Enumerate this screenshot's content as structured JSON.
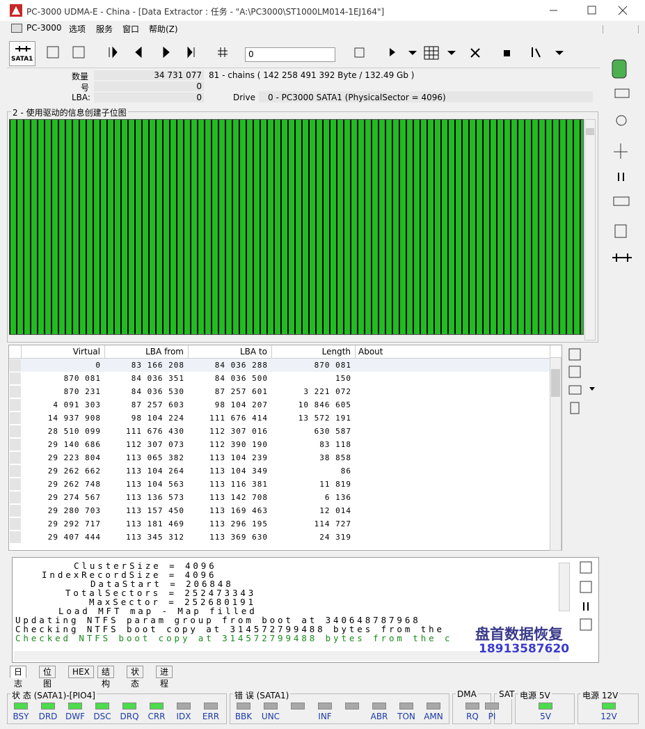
{
  "window": {
    "title": "PC-3000 UDMA-E - China - [Data Extractor : 任务 - \"A:\\PC3000\\ST1000LM014-1EJ164\"]"
  },
  "menu": [
    "PC-3000",
    "选项",
    "服务",
    "窗口",
    "帮助(Z)"
  ],
  "toolbar": {
    "port": "SATA1",
    "input": "0"
  },
  "info": {
    "count_label": "数量",
    "count": "34 731 077",
    "chains": "81 - chains  ( 142 258 491 392 Byte /  132.49 Gb )",
    "number_label": "号",
    "number": "0",
    "lba_label": "LBA:",
    "lba": "0",
    "drive_label": "Drive",
    "drive": "0 - PC3000 SATA1 (PhysicalSector = 4096)"
  },
  "map": {
    "title": "2 - 使用驱动的信息创建子位图"
  },
  "table": {
    "columns": [
      "Virtual",
      "LBA from",
      "LBA to",
      "Length",
      "About"
    ],
    "rows": [
      [
        "0",
        "83 166 208",
        "84 036 288",
        "870 081"
      ],
      [
        "870 081",
        "84 036 351",
        "84 036 500",
        "150"
      ],
      [
        "870 231",
        "84 036 530",
        "87 257 601",
        "3 221 072"
      ],
      [
        "4 091 303",
        "87 257 603",
        "98 104 207",
        "10 846 605"
      ],
      [
        "14 937 908",
        "98 104 224",
        "111 676 414",
        "13 572 191"
      ],
      [
        "28 510 099",
        "111 676 430",
        "112 307 016",
        "630 587"
      ],
      [
        "29 140 686",
        "112 307 073",
        "112 390 190",
        "83 118"
      ],
      [
        "29 223 804",
        "113 065 382",
        "113 104 239",
        "38 858"
      ],
      [
        "29 262 662",
        "113 104 264",
        "113 104 349",
        "86"
      ],
      [
        "29 262 748",
        "113 104 563",
        "113 116 381",
        "11 819"
      ],
      [
        "29 274 567",
        "113 136 573",
        "113 142 708",
        "6 136"
      ],
      [
        "29 280 703",
        "113 157 450",
        "113 169 463",
        "12 014"
      ],
      [
        "29 292 717",
        "113 181 469",
        "113 296 195",
        "114 727"
      ],
      [
        "29 407 444",
        "113 345 312",
        "113 369 630",
        "24 319"
      ]
    ]
  },
  "log": {
    "lines": [
      "ClusterSize = 4096",
      "IndexRecordSize = 4096",
      "DataStart = 206848",
      "TotalSectors = 252473343",
      "MaxSector = 252680191",
      "Load MFT map  - Map filled",
      "Updating NTFS param group from boot at 340648787968",
      "Checking NTFS boot copy at 314572799488 bytes from the",
      "Checked NTFS boot copy at 314572799488 bytes from the c"
    ]
  },
  "tabs": [
    "日志",
    "位图",
    "HEX",
    "结构",
    "状态",
    "进程"
  ],
  "status": [
    {
      "title": "状 态 (SATA1)-[PIO4]",
      "indicators": [
        {
          "label": "BSY",
          "lit": true
        },
        {
          "label": "DRD",
          "lit": true
        },
        {
          "label": "DWF",
          "lit": true
        },
        {
          "label": "DSC",
          "lit": true
        },
        {
          "label": "DRQ",
          "lit": true
        },
        {
          "label": "CRR",
          "lit": true
        },
        {
          "label": "IDX",
          "lit": false
        },
        {
          "label": "ERR",
          "lit": false
        }
      ]
    },
    {
      "title": "错 误 (SATA1)",
      "indicators": [
        {
          "label": "BBK",
          "lit": false
        },
        {
          "label": "UNC",
          "lit": false
        },
        {
          "label": null,
          "lit": false
        },
        {
          "label": "INF",
          "lit": false
        },
        {
          "label": null,
          "lit": false
        },
        {
          "label": "ABR",
          "lit": false
        },
        {
          "label": "TON",
          "lit": false
        },
        {
          "label": "AMN",
          "lit": false
        }
      ]
    },
    {
      "title": "DMA",
      "indicators": [
        {
          "label": "RQ",
          "lit": false
        }
      ]
    },
    {
      "title": "SAT",
      "indicators": [
        {
          "label": "PI",
          "lit": false
        }
      ]
    },
    {
      "title": "电源 5V",
      "indicators": [
        {
          "label": "5V",
          "lit": true
        }
      ]
    },
    {
      "title": "电源 12V",
      "indicators": [
        {
          "label": "12V",
          "lit": true
        }
      ]
    }
  ],
  "watermark": {
    "name": "盘首数据恢复",
    "phone": "18913587620"
  }
}
